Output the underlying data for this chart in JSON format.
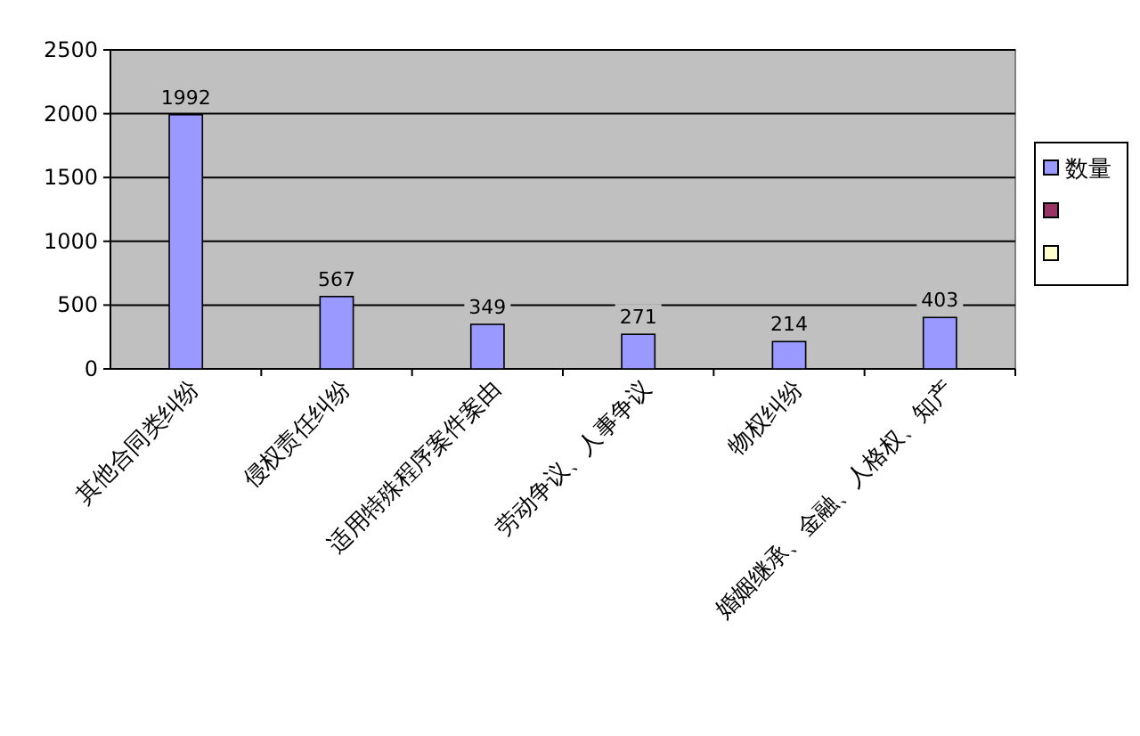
{
  "chart_data": {
    "type": "bar",
    "categories": [
      "其他合同类纠纷",
      "侵权责任纠纷",
      "适用特殊程序案件案由",
      "劳动争议、人事争议",
      "物权纠纷",
      "婚姻继承、金融、人格权、知产"
    ],
    "series": [
      {
        "name": "数量",
        "color": "#9999ff",
        "values": [
          1992,
          567,
          349,
          271,
          214,
          403
        ]
      },
      {
        "color": "#993366",
        "values": [
          null,
          null,
          null,
          null,
          null,
          null
        ]
      },
      {
        "color": "#ffffcc",
        "values": [
          null,
          null,
          null,
          null,
          null,
          null
        ]
      }
    ],
    "ylim": [
      0,
      2500
    ],
    "yticks": [
      0,
      500,
      1000,
      1500,
      2000,
      2500
    ],
    "grid": "y",
    "legend": "right",
    "data_labels": true
  }
}
